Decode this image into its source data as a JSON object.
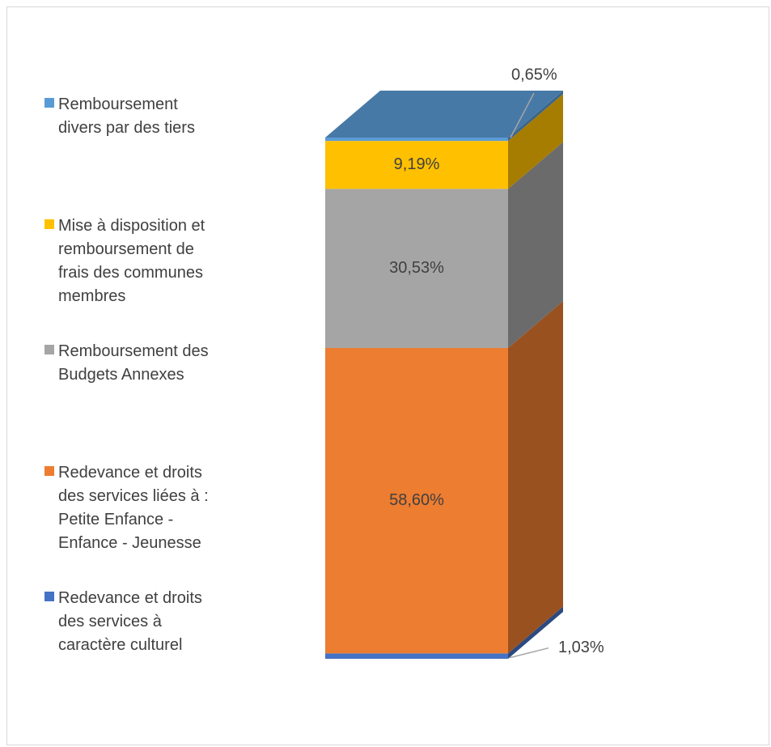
{
  "chart_data": {
    "type": "bar",
    "stacked": true,
    "three_d": true,
    "categories": [
      ""
    ],
    "ylim": [
      0,
      100
    ],
    "unit": "%",
    "legend_position": "left",
    "series": [
      {
        "name": "Redevance et droits des services à caractère culturel",
        "values": [
          1.03
        ],
        "label": "1,03%",
        "color": "#4472c4",
        "label_outside": true
      },
      {
        "name": "Redevance et droits des services liées à : Petite Enfance - Enfance - Jeunesse",
        "values": [
          58.6
        ],
        "label": "58,60%",
        "color": "#ed7d31",
        "label_outside": false
      },
      {
        "name": "Remboursement des Budgets Annexes",
        "values": [
          30.53
        ],
        "label": "30,53%",
        "color": "#a5a5a5",
        "label_outside": false
      },
      {
        "name": "Mise à disposition et remboursement de frais des communes membres",
        "values": [
          9.19
        ],
        "label": "9,19%",
        "color": "#ffc000",
        "label_outside": false
      },
      {
        "name": "Remboursement divers par des tiers",
        "values": [
          0.65
        ],
        "label": "0,65%",
        "color": "#5b9bd5",
        "label_outside": true
      }
    ]
  },
  "legend": [
    {
      "lines": [
        "Remboursement",
        "divers par des tiers"
      ],
      "color": "#5b9bd5"
    },
    {
      "lines": [
        "Mise à disposition et",
        "remboursement de",
        "frais des communes",
        "membres"
      ],
      "color": "#ffc000"
    },
    {
      "lines": [
        "Remboursement des",
        "Budgets Annexes"
      ],
      "color": "#a5a5a5"
    },
    {
      "lines": [
        "Redevance et droits",
        "des services liées à :",
        "Petite Enfance -",
        "Enfance - Jeunesse"
      ],
      "color": "#ed7d31"
    },
    {
      "lines": [
        "Redevance et droits",
        "des services à",
        "caractère culturel"
      ],
      "color": "#4472c4"
    }
  ]
}
